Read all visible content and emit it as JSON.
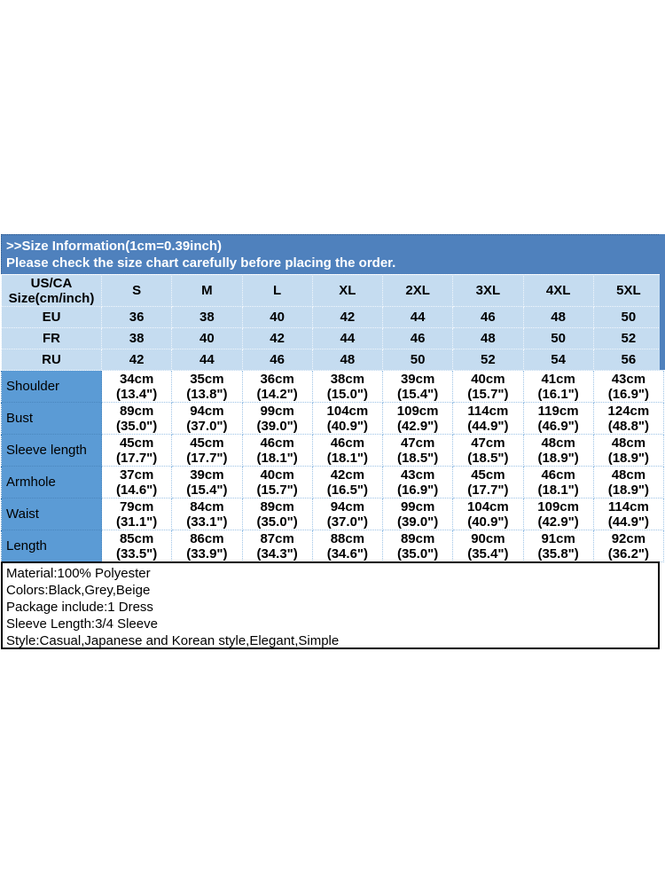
{
  "banner": {
    "line1": ">>Size Information(1cm=0.39inch)",
    "line2": "Please check the size chart carefully before placing the order."
  },
  "size_chart": {
    "corner_header": {
      "line1": "US/CA",
      "line2": "Size(cm/inch)"
    },
    "size_columns": [
      "S",
      "M",
      "L",
      "XL",
      "2XL",
      "3XL",
      "4XL",
      "5XL"
    ],
    "region_rows": [
      {
        "label": "EU",
        "values": [
          "36",
          "38",
          "40",
          "42",
          "44",
          "46",
          "48",
          "50"
        ]
      },
      {
        "label": "FR",
        "values": [
          "38",
          "40",
          "42",
          "44",
          "46",
          "48",
          "50",
          "52"
        ]
      },
      {
        "label": "RU",
        "values": [
          "42",
          "44",
          "46",
          "48",
          "50",
          "52",
          "54",
          "56"
        ]
      }
    ],
    "measurement_rows": [
      {
        "label": "Shoulder",
        "values": [
          {
            "cm": "34cm",
            "inch": "(13.4\")"
          },
          {
            "cm": "35cm",
            "inch": "(13.8\")"
          },
          {
            "cm": "36cm",
            "inch": "(14.2\")"
          },
          {
            "cm": "38cm",
            "inch": "(15.0\")"
          },
          {
            "cm": "39cm",
            "inch": "(15.4\")"
          },
          {
            "cm": "40cm",
            "inch": "(15.7\")"
          },
          {
            "cm": "41cm",
            "inch": "(16.1\")"
          },
          {
            "cm": "43cm",
            "inch": "(16.9\")"
          }
        ]
      },
      {
        "label": "Bust",
        "values": [
          {
            "cm": "89cm",
            "inch": "(35.0\")"
          },
          {
            "cm": "94cm",
            "inch": "(37.0\")"
          },
          {
            "cm": "99cm",
            "inch": "(39.0\")"
          },
          {
            "cm": "104cm",
            "inch": "(40.9\")"
          },
          {
            "cm": "109cm",
            "inch": "(42.9\")"
          },
          {
            "cm": "114cm",
            "inch": "(44.9\")"
          },
          {
            "cm": "119cm",
            "inch": "(46.9\")"
          },
          {
            "cm": "124cm",
            "inch": "(48.8\")"
          }
        ]
      },
      {
        "label": "Sleeve length",
        "values": [
          {
            "cm": "45cm",
            "inch": "(17.7\")"
          },
          {
            "cm": "45cm",
            "inch": "(17.7\")"
          },
          {
            "cm": "46cm",
            "inch": "(18.1\")"
          },
          {
            "cm": "46cm",
            "inch": "(18.1\")"
          },
          {
            "cm": "47cm",
            "inch": "(18.5\")"
          },
          {
            "cm": "47cm",
            "inch": "(18.5\")"
          },
          {
            "cm": "48cm",
            "inch": "(18.9\")"
          },
          {
            "cm": "48cm",
            "inch": "(18.9\")"
          }
        ]
      },
      {
        "label": "Armhole",
        "values": [
          {
            "cm": "37cm",
            "inch": "(14.6\")"
          },
          {
            "cm": "39cm",
            "inch": "(15.4\")"
          },
          {
            "cm": "40cm",
            "inch": "(15.7\")"
          },
          {
            "cm": "42cm",
            "inch": "(16.5\")"
          },
          {
            "cm": "43cm",
            "inch": "(16.9\")"
          },
          {
            "cm": "45cm",
            "inch": "(17.7\")"
          },
          {
            "cm": "46cm",
            "inch": "(18.1\")"
          },
          {
            "cm": "48cm",
            "inch": "(18.9\")"
          }
        ]
      },
      {
        "label": "Waist",
        "values": [
          {
            "cm": "79cm",
            "inch": "(31.1\")"
          },
          {
            "cm": "84cm",
            "inch": "(33.1\")"
          },
          {
            "cm": "89cm",
            "inch": "(35.0\")"
          },
          {
            "cm": "94cm",
            "inch": "(37.0\")"
          },
          {
            "cm": "99cm",
            "inch": "(39.0\")"
          },
          {
            "cm": "104cm",
            "inch": "(40.9\")"
          },
          {
            "cm": "109cm",
            "inch": "(42.9\")"
          },
          {
            "cm": "114cm",
            "inch": "(44.9\")"
          }
        ]
      },
      {
        "label": "Length",
        "values": [
          {
            "cm": "85cm",
            "inch": "(33.5\")"
          },
          {
            "cm": "86cm",
            "inch": "(33.9\")"
          },
          {
            "cm": "87cm",
            "inch": "(34.3\")"
          },
          {
            "cm": "88cm",
            "inch": "(34.6\")"
          },
          {
            "cm": "89cm",
            "inch": "(35.0\")"
          },
          {
            "cm": "90cm",
            "inch": "(35.4\")"
          },
          {
            "cm": "91cm",
            "inch": "(35.8\")"
          },
          {
            "cm": "92cm",
            "inch": "(36.2\")"
          }
        ]
      }
    ]
  },
  "product_details": {
    "lines": [
      "Material:100% Polyester",
      "Colors:Black,Grey,Beige",
      "Package include:1 Dress",
      "Sleeve Length:3/4 Sleeve",
      "Style:Casual,Japanese and Korean style,Elegant,Simple"
    ]
  },
  "colors": {
    "banner_blue": "#4F81BD",
    "light_blue": "#C5DCF0",
    "label_blue": "#5B9BD5",
    "border_dotted_blue": "#9DC3E6",
    "details_border": "#000000"
  }
}
